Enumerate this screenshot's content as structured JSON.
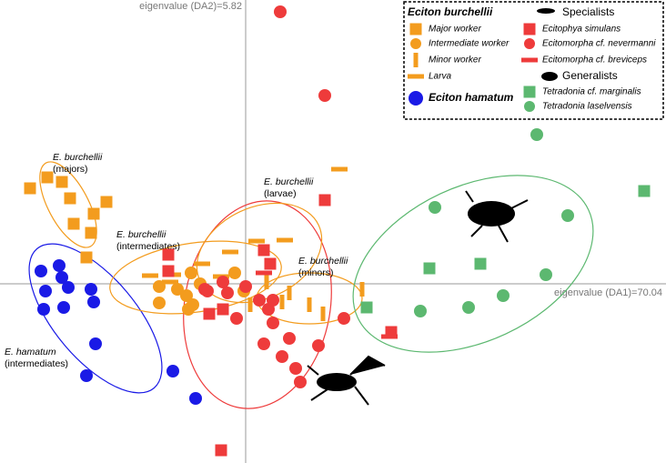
{
  "chart_data": {
    "type": "scatter",
    "xlabel": "eigenvalue (DA1)=70.04",
    "ylabel": "eigenvalue (DA2)=5.82",
    "xlim": [
      -27,
      46.2
    ],
    "ylim": [
      -19.7,
      31.2
    ],
    "legend_groups": [
      "Eciton burchellii",
      "Specialists",
      "Generalists"
    ],
    "annotations": [
      [
        "E. burchellii",
        "(majors)"
      ],
      [
        "E. burchellii",
        "(intermediates)"
      ],
      [
        "E. burchellii",
        "(larvae)"
      ],
      [
        "E. burchellii",
        "(minors)"
      ],
      [
        "E. hamatum",
        "(intermediates)"
      ]
    ],
    "series": [
      {
        "name": "Major worker",
        "color": "#f39c1e",
        "marker": "square",
        "x": [
          -23.7,
          -21.8,
          -20.2,
          -19.3,
          -15.3,
          -16.7,
          -18.9,
          -17,
          -17.5
        ],
        "values": [
          10.5,
          11.7,
          11.2,
          9.4,
          9,
          7.7,
          6.6,
          5.6,
          2.9
        ]
      },
      {
        "name": "Intermediate worker",
        "color": "#f39c1e",
        "marker": "circle",
        "x": [
          -6,
          -9.5,
          -7.5,
          -6.5,
          -5,
          -9.5,
          -6.3,
          -1.2,
          -0.2,
          -5.8
        ],
        "values": [
          1.2,
          -0.3,
          -0.6,
          -1.3,
          0,
          -2.1,
          -2.8,
          1.2,
          -0.8,
          -2.3
        ]
      },
      {
        "name": "Minor worker",
        "color": "#f39c1e",
        "marker": "vbar",
        "x": [
          2.3,
          4,
          7,
          8.5,
          12.8,
          4.8,
          0.5
        ],
        "values": [
          0.2,
          -2,
          -2.3,
          -3.3,
          -0.6,
          -1,
          -2.3
        ]
      },
      {
        "name": "Larva",
        "color": "#f39c1e",
        "marker": "hbar",
        "x": [
          10.3,
          4.3,
          1.2,
          -1.7,
          -2.7,
          -4.8,
          -8,
          -10.5,
          -8.3
        ],
        "values": [
          12.6,
          4.8,
          4.7,
          3.5,
          0.8,
          2.2,
          1,
          0.9,
          0.2
        ]
      },
      {
        "name": "Eciton hamatum",
        "color": "#1a1ae6",
        "marker": "circle",
        "x": [
          -22.5,
          -20.5,
          -20.2,
          -22,
          -19.5,
          -17,
          -16.7,
          -20,
          -22.2,
          -16.5,
          -17.5,
          -8,
          -5.5
        ],
        "values": [
          1.4,
          2,
          0.7,
          -0.8,
          -0.4,
          -0.6,
          -2,
          -2.6,
          -2.8,
          -6.6,
          -10.1,
          -9.6,
          -12.6
        ]
      },
      {
        "name": "Ecitophya simulans",
        "color": "#ee3b3b",
        "marker": "square",
        "x": [
          8.7,
          -2.7,
          -8.5,
          2.7,
          16,
          -4,
          -2.5,
          -8.5,
          2
        ],
        "values": [
          9.2,
          -18.3,
          3.2,
          2.2,
          -5.3,
          -3.3,
          -2.8,
          1.4,
          3.7
        ]
      },
      {
        "name": "Ecitomorpha cf. nevermanni",
        "color": "#ee3b3b",
        "marker": "circle",
        "x": [
          3.8,
          8.7,
          -4.5,
          -2,
          0,
          1.5,
          2.5,
          3,
          4.8,
          2,
          4,
          5.5,
          6,
          8,
          10.8,
          -1,
          -4.2,
          -2.5,
          3
        ],
        "values": [
          29.9,
          20.7,
          -0.6,
          -1,
          -0.3,
          -1.8,
          -2.8,
          -4.3,
          -6,
          -6.6,
          -8,
          -9.3,
          -10.8,
          -6.8,
          -3.8,
          -3.8,
          -0.8,
          0.2,
          -1.8
        ]
      },
      {
        "name": "Ecitomorpha cf. breviceps",
        "color": "#ee3b3b",
        "marker": "hbar",
        "x": [
          15.8,
          2
        ],
        "values": [
          -5.8,
          1.2
        ]
      },
      {
        "name": "Tetradonia cf. marginalis",
        "color": "#5cb870",
        "marker": "square",
        "x": [
          43.8,
          20.2,
          25.8,
          13.3
        ],
        "values": [
          10.2,
          1.7,
          2.2,
          -2.6
        ]
      },
      {
        "name": "Tetradonia laselvensis",
        "color": "#5cb870",
        "marker": "circle",
        "x": [
          32,
          20.8,
          35.4,
          33,
          28.3,
          24.5,
          19.2
        ],
        "values": [
          16.4,
          8.4,
          7.5,
          1,
          -1.3,
          -2.6,
          -3
        ]
      }
    ]
  }
}
